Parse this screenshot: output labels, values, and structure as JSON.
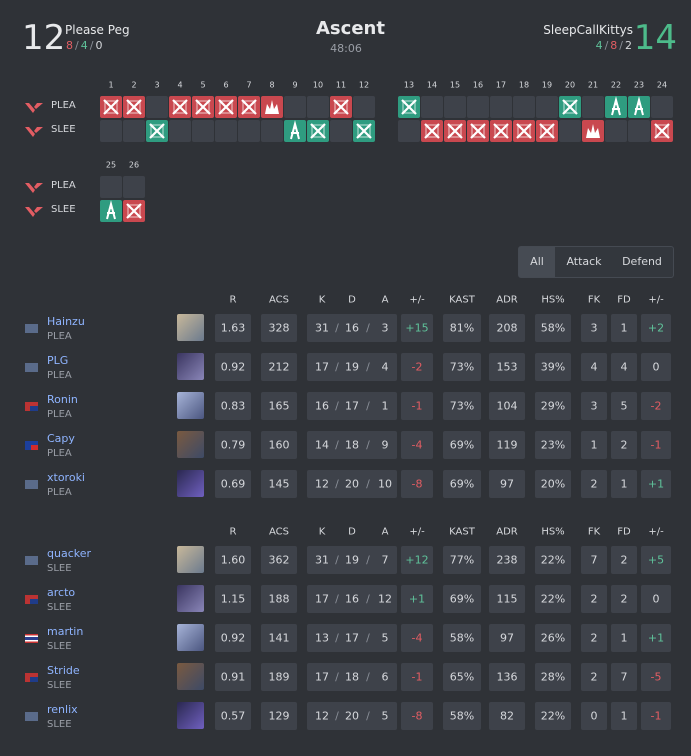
{
  "header": {
    "team1": {
      "score": "12",
      "name": "Please Peg",
      "record": [
        "8",
        "/",
        "4",
        "/",
        "0"
      ],
      "record_colors": [
        "#e35d63",
        "#8a8f98",
        "#5fc29a",
        "#8a8f98",
        "#d6d8dc"
      ]
    },
    "map": "Ascent",
    "duration": "48:06",
    "team2": {
      "score": "14",
      "name": "SleepCallKittys",
      "record": [
        "4",
        "/",
        "8",
        "/",
        "2"
      ],
      "record_colors": [
        "#5fc29a",
        "#8a8f98",
        "#e35d63",
        "#8a8f98",
        "#d6d8dc"
      ]
    }
  },
  "rounds": {
    "teams": [
      "PLEA",
      "SLEE"
    ],
    "list": [
      {
        "number": "1",
        "winner": 0,
        "side": "atk",
        "result": "elim"
      },
      {
        "number": "2",
        "winner": 0,
        "side": "atk",
        "result": "elim"
      },
      {
        "number": "3",
        "winner": 1,
        "side": "def",
        "result": "elim"
      },
      {
        "number": "4",
        "winner": 0,
        "side": "atk",
        "result": "elim"
      },
      {
        "number": "5",
        "winner": 0,
        "side": "atk",
        "result": "elim"
      },
      {
        "number": "6",
        "winner": 0,
        "side": "atk",
        "result": "elim"
      },
      {
        "number": "7",
        "winner": 0,
        "side": "atk",
        "result": "elim"
      },
      {
        "number": "8",
        "winner": 0,
        "side": "atk",
        "result": "boom"
      },
      {
        "number": "9",
        "winner": 1,
        "side": "def",
        "result": "defuse"
      },
      {
        "number": "10",
        "winner": 1,
        "side": "def",
        "result": "elim"
      },
      {
        "number": "11",
        "winner": 0,
        "side": "atk",
        "result": "elim"
      },
      {
        "number": "12",
        "winner": 1,
        "side": "def",
        "result": "elim"
      },
      {
        "number": "13",
        "winner": 0,
        "side": "def",
        "result": "elim"
      },
      {
        "number": "14",
        "winner": 1,
        "side": "atk",
        "result": "elim"
      },
      {
        "number": "15",
        "winner": 1,
        "side": "atk",
        "result": "elim"
      },
      {
        "number": "16",
        "winner": 1,
        "side": "atk",
        "result": "elim"
      },
      {
        "number": "17",
        "winner": 1,
        "side": "atk",
        "result": "elim"
      },
      {
        "number": "18",
        "winner": 1,
        "side": "atk",
        "result": "elim"
      },
      {
        "number": "19",
        "winner": 1,
        "side": "atk",
        "result": "elim"
      },
      {
        "number": "20",
        "winner": 0,
        "side": "def",
        "result": "elim"
      },
      {
        "number": "21",
        "winner": 1,
        "side": "atk",
        "result": "boom"
      },
      {
        "number": "22",
        "winner": 0,
        "side": "def",
        "result": "defuse"
      },
      {
        "number": "23",
        "winner": 0,
        "side": "def",
        "result": "defuse"
      },
      {
        "number": "24",
        "winner": 1,
        "side": "atk",
        "result": "elim"
      },
      {
        "number": "25",
        "winner": 1,
        "side": "def",
        "result": "defuse"
      },
      {
        "number": "26",
        "winner": 1,
        "side": "atk",
        "result": "elim"
      }
    ]
  },
  "tabs": [
    "All",
    "Attack",
    "Defend"
  ],
  "active_tab": 0,
  "tables": [
    {
      "columns": [
        "R",
        "ACS",
        "K",
        "D",
        "A",
        "+/-",
        "KAST",
        "ADR",
        "HS%",
        "FK",
        "FD",
        "+/-"
      ],
      "players": [
        {
          "name": "Hainzu",
          "team": "PLEA",
          "flag": "eu",
          "rating": "1.63",
          "acs": "328",
          "kda": [
            "31",
            "/",
            "16",
            "/",
            "3"
          ],
          "diff": "+15",
          "kast": "81%",
          "adr": "208",
          "hs": "58%",
          "fk": "3",
          "fd": "1",
          "fk_diff": "+2"
        },
        {
          "name": "PLG",
          "team": "PLEA",
          "flag": "eu",
          "rating": "0.92",
          "acs": "212",
          "kda": [
            "17",
            "/",
            "19",
            "/",
            "4"
          ],
          "diff": "-2",
          "kast": "73%",
          "adr": "153",
          "hs": "39%",
          "fk": "4",
          "fd": "4",
          "fk_diff": "0"
        },
        {
          "name": "Ronin",
          "team": "PLEA",
          "flag": "au",
          "rating": "0.83",
          "acs": "165",
          "kda": [
            "16",
            "/",
            "17",
            "/",
            "1"
          ],
          "diff": "-1",
          "kast": "73%",
          "adr": "104",
          "hs": "29%",
          "fk": "3",
          "fd": "5",
          "fk_diff": "-2"
        },
        {
          "name": "Capy",
          "team": "PLEA",
          "flag": "tw",
          "rating": "0.79",
          "acs": "160",
          "kda": [
            "14",
            "/",
            "18",
            "/",
            "9"
          ],
          "diff": "-4",
          "kast": "69%",
          "adr": "119",
          "hs": "23%",
          "fk": "1",
          "fd": "2",
          "fk_diff": "-1"
        },
        {
          "name": "xtoroki",
          "team": "PLEA",
          "flag": "eu",
          "rating": "0.69",
          "acs": "145",
          "kda": [
            "12",
            "/",
            "20",
            "/",
            "10"
          ],
          "diff": "-8",
          "kast": "69%",
          "adr": "97",
          "hs": "20%",
          "fk": "2",
          "fd": "1",
          "fk_diff": "+1"
        }
      ]
    },
    {
      "columns": [
        "R",
        "ACS",
        "K",
        "D",
        "A",
        "+/-",
        "KAST",
        "ADR",
        "HS%",
        "FK",
        "FD",
        "+/-"
      ],
      "players": [
        {
          "name": "quacker",
          "team": "SLEE",
          "flag": "eu",
          "rating": "1.60",
          "acs": "362",
          "kda": [
            "31",
            "/",
            "19",
            "/",
            "7"
          ],
          "diff": "+12",
          "kast": "77%",
          "adr": "238",
          "hs": "22%",
          "fk": "7",
          "fd": "2",
          "fk_diff": "+5"
        },
        {
          "name": "arcto",
          "team": "SLEE",
          "flag": "au",
          "rating": "1.15",
          "acs": "188",
          "kda": [
            "17",
            "/",
            "16",
            "/",
            "12"
          ],
          "diff": "+1",
          "kast": "69%",
          "adr": "115",
          "hs": "22%",
          "fk": "2",
          "fd": "2",
          "fk_diff": "0"
        },
        {
          "name": "martin",
          "team": "SLEE",
          "flag": "th",
          "rating": "0.92",
          "acs": "141",
          "kda": [
            "13",
            "/",
            "17",
            "/",
            "5"
          ],
          "diff": "-4",
          "kast": "58%",
          "adr": "97",
          "hs": "26%",
          "fk": "2",
          "fd": "1",
          "fk_diff": "+1"
        },
        {
          "name": "Stride",
          "team": "SLEE",
          "flag": "au",
          "rating": "0.91",
          "acs": "189",
          "kda": [
            "17",
            "/",
            "18",
            "/",
            "6"
          ],
          "diff": "-1",
          "kast": "65%",
          "adr": "136",
          "hs": "28%",
          "fk": "2",
          "fd": "7",
          "fk_diff": "-5"
        },
        {
          "name": "renlix",
          "team": "SLEE",
          "flag": "eu",
          "rating": "0.57",
          "acs": "129",
          "kda": [
            "12",
            "/",
            "20",
            "/",
            "5"
          ],
          "diff": "-8",
          "kast": "58%",
          "adr": "82",
          "hs": "22%",
          "fk": "0",
          "fd": "1",
          "fk_diff": "-1"
        }
      ]
    }
  ]
}
